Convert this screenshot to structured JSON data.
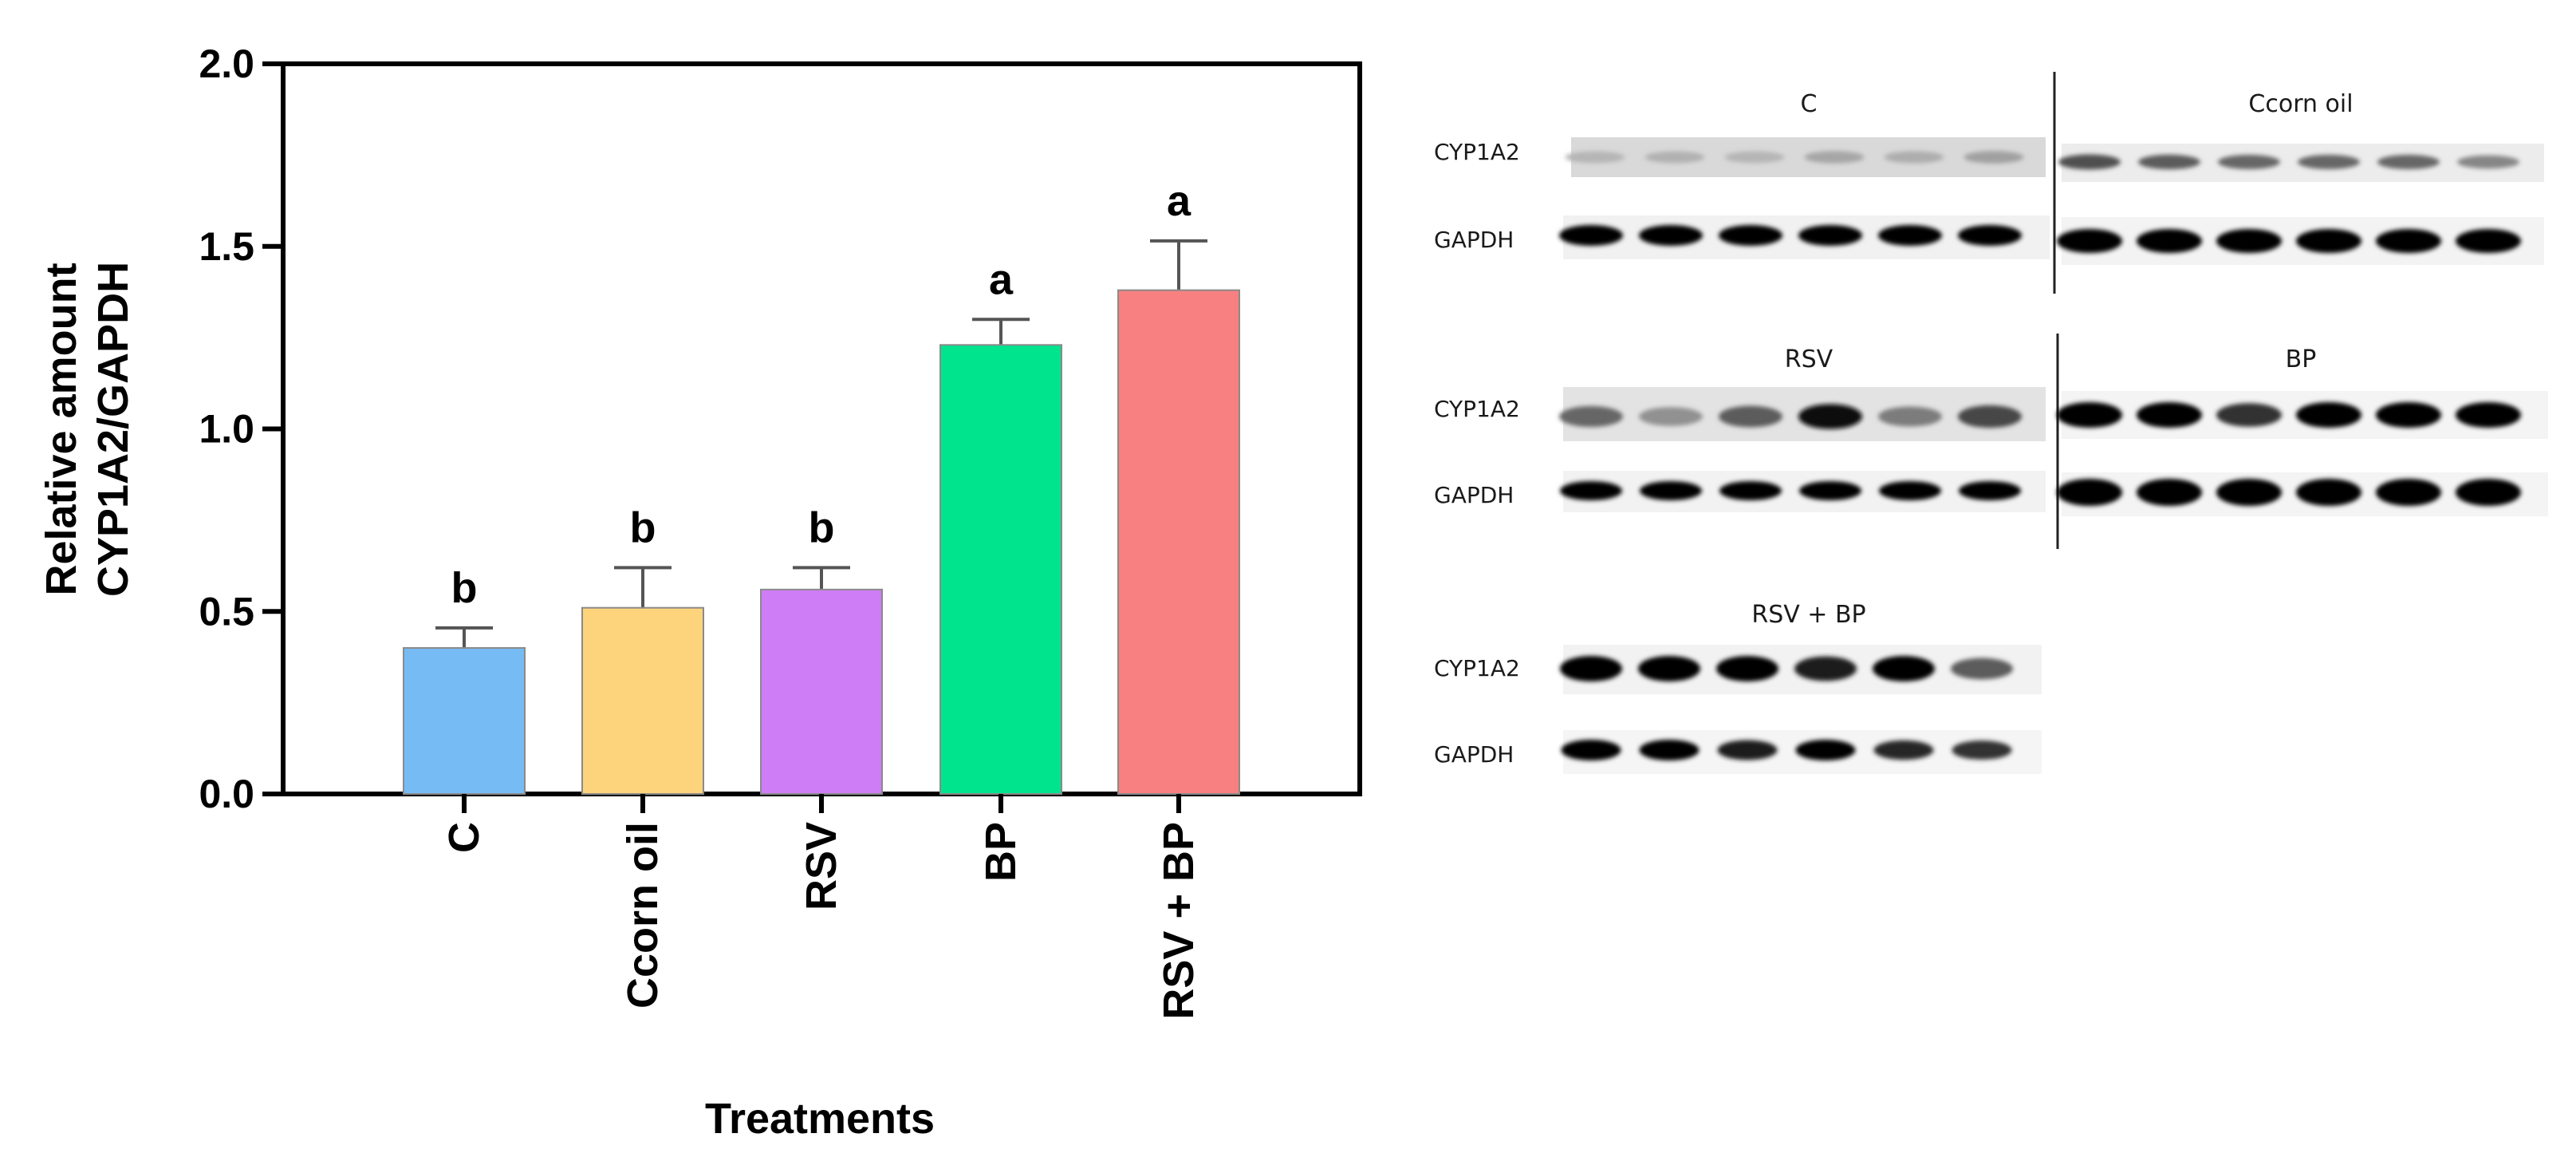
{
  "chart_data": {
    "type": "bar",
    "title": "",
    "xlabel": "Treatments",
    "ylabel_line1": "Relative amount",
    "ylabel_line2": "CYP1A2/GAPDH",
    "ylim": [
      0,
      2.0
    ],
    "yticks": [
      "0.0",
      "0.5",
      "1.0",
      "1.5",
      "2.0"
    ],
    "ytick_values": [
      0,
      0.5,
      1.0,
      1.5,
      2.0
    ],
    "grid": false,
    "categories": [
      "C",
      "Ccorn oil",
      "RSV",
      "BP",
      "RSV + BP"
    ],
    "values": [
      0.4,
      0.51,
      0.56,
      1.23,
      1.38
    ],
    "errors": [
      0.055,
      0.11,
      0.06,
      0.07,
      0.135
    ],
    "significance_letters": [
      "b",
      "b",
      "b",
      "a",
      "a"
    ],
    "colors": [
      "#77bbf5",
      "#fdd47b",
      "#cf7df6",
      "#00e48d",
      "#f98081"
    ]
  },
  "blots": {
    "panels": [
      {
        "title": "C",
        "rows": [
          "CYP1A2",
          "GAPDH"
        ]
      },
      {
        "title": "Ccorn oil",
        "rows": []
      },
      {
        "title": "RSV",
        "rows": [
          "CYP1A2",
          "GAPDH"
        ]
      },
      {
        "title": "BP",
        "rows": []
      },
      {
        "title": "RSV + BP",
        "rows": [
          "CYP1A2",
          "GAPDH"
        ]
      }
    ],
    "band_intensity": {
      "C_cyp": [
        0.18,
        0.2,
        0.18,
        0.25,
        0.22,
        0.28
      ],
      "C_gapdh": [
        1.0,
        1.0,
        1.0,
        1.0,
        1.0,
        1.0
      ],
      "Ccorn_cyp": [
        0.65,
        0.6,
        0.55,
        0.55,
        0.55,
        0.4
      ],
      "Ccorn_gapdh": [
        1.0,
        1.0,
        1.0,
        1.0,
        1.0,
        1.0
      ],
      "RSV_cyp": [
        0.55,
        0.35,
        0.6,
        0.95,
        0.45,
        0.7
      ],
      "RSV_gapdh": [
        1.0,
        1.0,
        1.0,
        1.0,
        1.0,
        1.0
      ],
      "BP_cyp": [
        1.0,
        1.0,
        0.8,
        1.0,
        1.0,
        1.0
      ],
      "BP_gapdh": [
        1.0,
        1.0,
        1.0,
        1.0,
        1.0,
        1.0
      ],
      "RSVBP_cyp": [
        1.0,
        1.0,
        1.0,
        0.9,
        1.0,
        0.6
      ],
      "RSVBP_gapdh": [
        1.0,
        1.0,
        0.9,
        1.0,
        0.85,
        0.8
      ]
    }
  }
}
